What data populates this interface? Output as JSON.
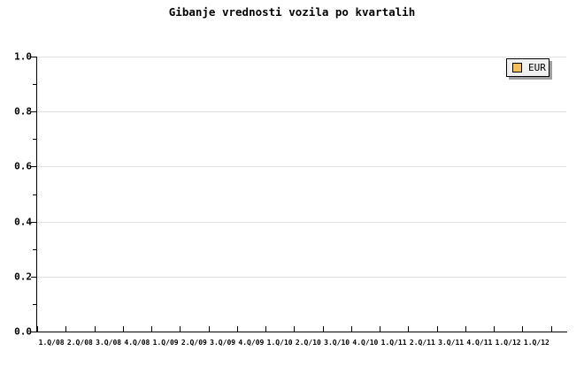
{
  "chart": {
    "title": "Gibanje vrednosti vozila po kvartalih",
    "legend": {
      "label": "EUR",
      "swatch_color": "#f7be5c",
      "position": "top-right"
    },
    "colors": {
      "axis": "#000000",
      "gridline": "#e0e0e0",
      "legend_background": "#f0f0f0",
      "legend_shadow": "#9f9f9f",
      "background": "#ffffff"
    }
  },
  "chart_data": {
    "type": "bar",
    "title": "Gibanje vrednosti vozila po kvartalih",
    "categories": [
      "1.Q/08",
      "2.Q/08",
      "3.Q/08",
      "4.Q/08",
      "1.Q/09",
      "2.Q/09",
      "3.Q/09",
      "4.Q/09",
      "1.Q/10",
      "2.Q/10",
      "3.Q/10",
      "4.Q/10",
      "1.Q/11",
      "2.Q/11",
      "3.Q/11",
      "4.Q/11",
      "1.Q/12",
      "1.Q/12"
    ],
    "series": [
      {
        "name": "EUR",
        "color": "#f7be5c",
        "values": []
      }
    ],
    "ylim": [
      0.0,
      1.0
    ],
    "y_major_ticks": [
      0.0,
      0.2,
      0.4,
      0.6,
      0.8,
      1.0
    ],
    "y_tick_labels": [
      "0.0",
      "0.2",
      "0.4",
      "0.6",
      "0.8",
      "1.0"
    ],
    "y_minor_ticks": [
      0.1,
      0.3,
      0.5,
      0.7,
      0.9
    ],
    "grid": "horizontal-major",
    "legend_position": "top-right",
    "xlabel": "",
    "ylabel": ""
  }
}
